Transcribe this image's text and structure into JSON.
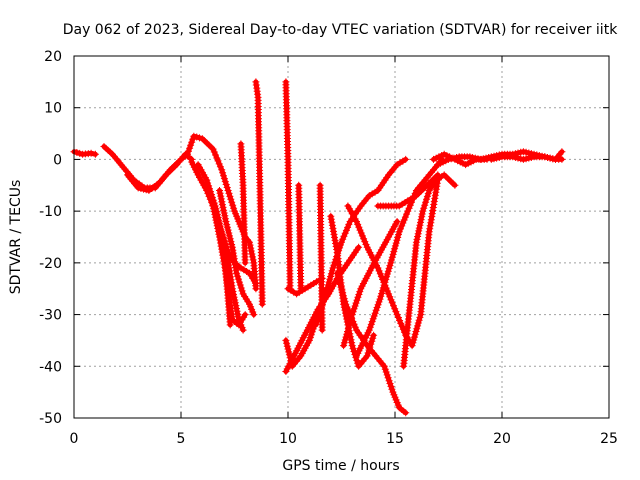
{
  "chart_data": {
    "type": "scatter",
    "title": "Day 062 of 2023, Sidereal Day-to-day VTEC variation (SDTVAR) for receiver iitk",
    "xlabel": "GPS time / hours",
    "ylabel": "SDTVAR / TECUs",
    "xlim": [
      0,
      25
    ],
    "ylim": [
      -50,
      20
    ],
    "xticks": [
      "0",
      "5",
      "10",
      "15",
      "20",
      "25"
    ],
    "yticks": [
      "20",
      "10",
      "0",
      "-10",
      "-20",
      "-30",
      "-40",
      "-50"
    ],
    "grid": true,
    "marker": "+",
    "color": "#ff0000",
    "series": [
      {
        "name": "track-01",
        "x": [
          0.0,
          0.4,
          0.8,
          1.0
        ],
        "y": [
          1.5,
          1.0,
          1.2,
          1.0
        ]
      },
      {
        "name": "track-02",
        "x": [
          1.4,
          1.8,
          2.3,
          2.8,
          3.3,
          3.8,
          4.3,
          4.8,
          5.2,
          5.5
        ],
        "y": [
          2.5,
          1.0,
          -1.5,
          -4.0,
          -5.5,
          -5.5,
          -3.0,
          -1.0,
          1.0,
          0.0
        ]
      },
      {
        "name": "track-03",
        "x": [
          2.5,
          3.0,
          3.5,
          4.0,
          4.5,
          5.0,
          5.3
        ],
        "y": [
          -3.0,
          -5.5,
          -6.0,
          -4.5,
          -2.0,
          0.0,
          1.0
        ]
      },
      {
        "name": "track-04",
        "x": [
          5.3,
          5.6,
          6.0,
          6.5,
          6.9,
          7.2,
          7.5,
          7.8,
          8.0,
          8.2,
          8.4,
          8.5
        ],
        "y": [
          1.0,
          4.5,
          4.0,
          2.0,
          -2.0,
          -6.0,
          -10.0,
          -13.0,
          -15.0,
          -16.0,
          -20.0,
          -25.0
        ]
      },
      {
        "name": "track-05",
        "x": [
          5.5,
          5.8,
          6.2,
          6.6,
          7.0,
          7.3
        ],
        "y": [
          -0.5,
          -3.0,
          -6.0,
          -10.0,
          -17.0,
          -32.0
        ]
      },
      {
        "name": "track-06",
        "x": [
          5.8,
          6.2,
          6.6,
          6.9,
          7.2,
          7.5,
          7.8,
          8.2,
          8.5
        ],
        "y": [
          -1.0,
          -4.0,
          -9.0,
          -14.0,
          -18.0,
          -20.0,
          -21.0,
          -22.0,
          -24.0
        ]
      },
      {
        "name": "track-07",
        "x": [
          6.2,
          6.5,
          6.8,
          7.1,
          7.4,
          7.7,
          8.0
        ],
        "y": [
          -4.0,
          -9.0,
          -15.0,
          -22.0,
          -31.0,
          -32.0,
          -30.0
        ]
      },
      {
        "name": "track-08",
        "x": [
          6.8,
          7.1,
          7.4,
          7.6,
          7.9,
          8.2,
          8.4
        ],
        "y": [
          -6.0,
          -12.0,
          -17.0,
          -22.0,
          -26.0,
          -28.0,
          -30.0
        ]
      },
      {
        "name": "track-09",
        "x": [
          7.1,
          7.4,
          7.7,
          7.9
        ],
        "y": [
          -17.0,
          -25.0,
          -31.0,
          -33.0
        ]
      },
      {
        "name": "track-10",
        "x": [
          7.8,
          7.9,
          8.0
        ],
        "y": [
          3.0,
          -5.0,
          -20.0
        ]
      },
      {
        "name": "track-11",
        "x": [
          8.5,
          8.6,
          8.7,
          8.8
        ],
        "y": [
          15.0,
          12.0,
          -8.0,
          -28.0
        ]
      },
      {
        "name": "track-12",
        "x": [
          9.9,
          10.0,
          10.1
        ],
        "y": [
          15.0,
          0.0,
          -25.0
        ]
      },
      {
        "name": "track-13",
        "x": [
          9.9,
          10.2,
          10.6,
          11.0,
          11.4,
          11.8
        ],
        "y": [
          -35.0,
          -40.0,
          -38.0,
          -35.0,
          -30.0,
          -25.0
        ]
      },
      {
        "name": "track-14",
        "x": [
          10.0,
          10.4,
          10.8,
          11.2,
          11.6
        ],
        "y": [
          -25.0,
          -26.0,
          -25.0,
          -24.0,
          -23.0
        ]
      },
      {
        "name": "track-15",
        "x": [
          9.9,
          10.4,
          10.9,
          11.4,
          11.9,
          12.3,
          12.8,
          13.3
        ],
        "y": [
          -41.0,
          -37.0,
          -33.0,
          -29.0,
          -26.0,
          -23.0,
          -20.0,
          -17.0
        ]
      },
      {
        "name": "track-16",
        "x": [
          10.5,
          10.6
        ],
        "y": [
          -5.0,
          -25.0
        ]
      },
      {
        "name": "track-17",
        "x": [
          11.3,
          11.7,
          12.1,
          12.5,
          12.9,
          13.4,
          13.8,
          14.2,
          14.7,
          15.1,
          15.5
        ],
        "y": [
          -32.0,
          -27.0,
          -21.0,
          -16.0,
          -12.0,
          -9.0,
          -7.0,
          -6.0,
          -3.0,
          -1.0,
          0.0
        ]
      },
      {
        "name": "track-18",
        "x": [
          11.5,
          11.6
        ],
        "y": [
          -5.0,
          -33.0
        ]
      },
      {
        "name": "track-19",
        "x": [
          12.0,
          12.3,
          12.6,
          13.0,
          13.3,
          13.7,
          14.0
        ],
        "y": [
          -11.0,
          -18.0,
          -28.0,
          -36.0,
          -40.0,
          -38.0,
          -34.0
        ]
      },
      {
        "name": "track-20",
        "x": [
          12.3,
          12.7,
          13.2,
          13.7,
          14.1,
          14.5,
          14.9,
          15.2,
          15.5
        ],
        "y": [
          -22.0,
          -28.0,
          -33.0,
          -36.0,
          -38.0,
          -40.0,
          -45.0,
          -48.0,
          -49.0
        ]
      },
      {
        "name": "track-21",
        "x": [
          12.6,
          13.0,
          13.4,
          13.9,
          14.3,
          14.7,
          15.1
        ],
        "y": [
          -36.0,
          -30.0,
          -25.0,
          -21.0,
          -18.0,
          -15.0,
          -12.0
        ]
      },
      {
        "name": "track-22",
        "x": [
          12.8,
          13.2,
          13.7,
          14.2,
          14.7,
          15.1,
          15.5,
          15.8,
          16.2,
          16.6,
          17.0
        ],
        "y": [
          -9.0,
          -12.0,
          -17.0,
          -21.0,
          -26.0,
          -30.0,
          -34.0,
          -36.0,
          -30.0,
          -14.0,
          -4.0
        ]
      },
      {
        "name": "track-23",
        "x": [
          13.2,
          13.8,
          14.3,
          14.8,
          15.2,
          15.6,
          16.0,
          16.4,
          16.8,
          17.2
        ],
        "y": [
          -38.0,
          -33.0,
          -27.0,
          -20.0,
          -14.0,
          -10.0,
          -6.0,
          -4.0,
          -2.0,
          0.0
        ]
      },
      {
        "name": "track-24",
        "x": [
          14.2,
          14.7,
          15.2,
          15.6,
          16.0,
          16.5,
          17.0
        ],
        "y": [
          -9.0,
          -9.0,
          -9.0,
          -8.0,
          -7.0,
          -5.0,
          -3.0
        ]
      },
      {
        "name": "track-25",
        "x": [
          15.4,
          15.6,
          15.8,
          16.0,
          16.3,
          16.6,
          16.9,
          17.3,
          17.8
        ],
        "y": [
          -40.0,
          -32.0,
          -24.0,
          -16.0,
          -10.0,
          -6.0,
          -4.0,
          -3.0,
          -5.0
        ]
      },
      {
        "name": "track-26",
        "x": [
          17.0,
          17.5,
          18.0,
          18.5,
          19.0,
          19.5,
          20.0,
          20.5,
          21.0,
          21.5,
          22.0,
          22.5,
          22.8
        ],
        "y": [
          -1.0,
          0.0,
          0.5,
          0.5,
          0.0,
          0.5,
          1.0,
          1.0,
          1.5,
          1.0,
          0.5,
          0.0,
          0.0
        ]
      },
      {
        "name": "track-27",
        "x": [
          16.8,
          17.3,
          17.8,
          18.3,
          18.8,
          19.3
        ],
        "y": [
          0.0,
          1.0,
          0.0,
          -1.0,
          0.0,
          0.0
        ]
      },
      {
        "name": "track-28",
        "x": [
          19.5,
          20.0,
          20.5,
          21.0,
          21.5,
          22.0,
          22.5,
          22.8
        ],
        "y": [
          0.0,
          0.5,
          0.5,
          0.0,
          0.5,
          0.5,
          0.0,
          1.5
        ]
      }
    ]
  }
}
